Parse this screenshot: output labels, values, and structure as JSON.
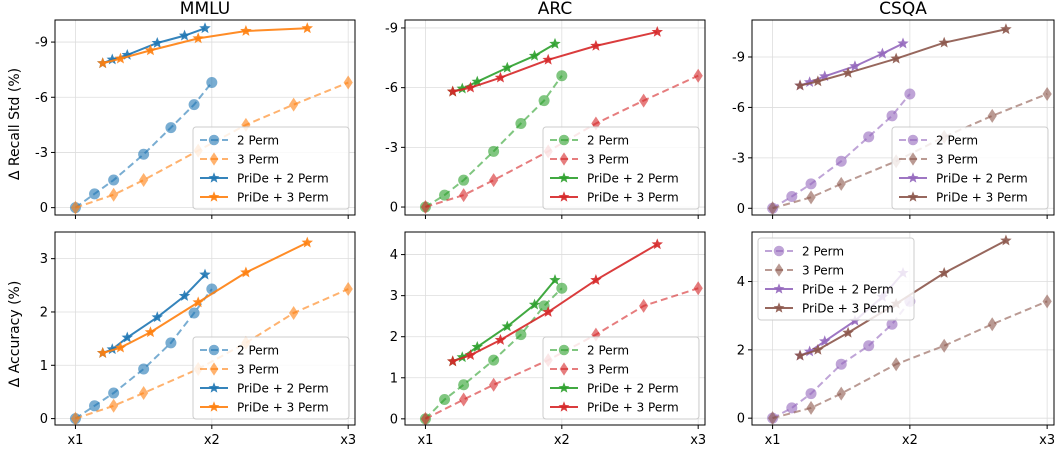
{
  "figure": {
    "ylabel_top": "Δ Recall Std (%)",
    "ylabel_bottom": "Δ Accuracy (%)"
  },
  "colors": {
    "MMLU": [
      "#1f77b4",
      "#ff7f0e"
    ],
    "ARC": [
      "#2ca02c",
      "#d62728"
    ],
    "CSQA": [
      "#9467bd",
      "#8c564b"
    ]
  },
  "chart_data": [
    {
      "type": "line",
      "title": "MMLU",
      "ylabel": "Δ Recall Std (%)",
      "xticks": [
        "x1",
        "x2",
        "x3"
      ],
      "xlim": [
        0.85,
        3.05
      ],
      "yticks": [
        0,
        -3,
        -6,
        -9
      ],
      "yticklabels": [
        "0",
        "-3",
        "-6",
        "-9"
      ],
      "ylim": [
        0.4,
        -10.2
      ],
      "legend": "lower-right",
      "series": [
        {
          "name": "2 Perm",
          "marker": "circle",
          "dashed": true,
          "x": [
            1,
            1.14,
            1.28,
            1.5,
            1.7,
            1.87,
            2
          ],
          "y": [
            0,
            -0.75,
            -1.5,
            -2.9,
            -4.35,
            -5.6,
            -6.8
          ]
        },
        {
          "name": "3 Perm",
          "marker": "diamond",
          "dashed": true,
          "x": [
            1,
            1.28,
            1.5,
            1.9,
            2.25,
            2.6,
            3
          ],
          "y": [
            0,
            -0.7,
            -1.5,
            -3.1,
            -4.5,
            -5.6,
            -6.8
          ]
        },
        {
          "name": "PriDe + 2 Perm",
          "marker": "star",
          "dashed": false,
          "x": [
            1.2,
            1.27,
            1.38,
            1.6,
            1.8,
            1.95
          ],
          "y": [
            -7.85,
            -8.05,
            -8.3,
            -8.95,
            -9.35,
            -9.75
          ]
        },
        {
          "name": "PriDe + 3 Perm",
          "marker": "star",
          "dashed": false,
          "x": [
            1.2,
            1.33,
            1.55,
            1.9,
            2.25,
            2.7
          ],
          "y": [
            -7.85,
            -8.1,
            -8.55,
            -9.2,
            -9.6,
            -9.75
          ]
        }
      ]
    },
    {
      "type": "line",
      "title": "ARC",
      "ylabel": "",
      "xticks": [
        "x1",
        "x2",
        "x3"
      ],
      "xlim": [
        0.85,
        3.05
      ],
      "yticks": [
        0,
        -3,
        -6,
        -9
      ],
      "yticklabels": [
        "0",
        "-3",
        "-6",
        "-9"
      ],
      "ylim": [
        0.4,
        -9.4
      ],
      "legend": "lower-right",
      "series": [
        {
          "name": "2 Perm",
          "marker": "circle",
          "dashed": true,
          "x": [
            1,
            1.14,
            1.28,
            1.5,
            1.7,
            1.87,
            2
          ],
          "y": [
            0,
            -0.6,
            -1.35,
            -2.8,
            -4.2,
            -5.35,
            -6.6
          ]
        },
        {
          "name": "3 Perm",
          "marker": "diamond",
          "dashed": true,
          "x": [
            1,
            1.28,
            1.5,
            1.9,
            2.25,
            2.6,
            3
          ],
          "y": [
            0,
            -0.6,
            -1.35,
            -2.8,
            -4.2,
            -5.35,
            -6.6
          ]
        },
        {
          "name": "PriDe + 2 Perm",
          "marker": "star",
          "dashed": false,
          "x": [
            1.2,
            1.27,
            1.38,
            1.6,
            1.8,
            1.95
          ],
          "y": [
            -5.8,
            -5.95,
            -6.3,
            -7.0,
            -7.6,
            -8.2
          ]
        },
        {
          "name": "PriDe + 3 Perm",
          "marker": "star",
          "dashed": false,
          "x": [
            1.2,
            1.33,
            1.55,
            1.9,
            2.25,
            2.7
          ],
          "y": [
            -5.8,
            -6.0,
            -6.5,
            -7.4,
            -8.1,
            -8.8
          ]
        }
      ]
    },
    {
      "type": "line",
      "title": "CSQA",
      "ylabel": "",
      "xticks": [
        "x1",
        "x2",
        "x3"
      ],
      "xlim": [
        0.85,
        3.05
      ],
      "yticks": [
        0,
        -3,
        -6,
        -9
      ],
      "yticklabels": [
        "0",
        "-3",
        "-6",
        "-9"
      ],
      "ylim": [
        0.4,
        -11.2
      ],
      "legend": "lower-right",
      "series": [
        {
          "name": "2 Perm",
          "marker": "circle",
          "dashed": true,
          "x": [
            1,
            1.14,
            1.28,
            1.5,
            1.7,
            1.87,
            2
          ],
          "y": [
            0,
            -0.7,
            -1.45,
            -2.8,
            -4.25,
            -5.5,
            -6.8
          ]
        },
        {
          "name": "3 Perm",
          "marker": "diamond",
          "dashed": true,
          "x": [
            1,
            1.28,
            1.5,
            1.9,
            2.25,
            2.6,
            3
          ],
          "y": [
            0,
            -0.65,
            -1.45,
            -2.8,
            -4.25,
            -5.5,
            -6.8
          ]
        },
        {
          "name": "PriDe + 2 Perm",
          "marker": "star",
          "dashed": false,
          "x": [
            1.2,
            1.27,
            1.38,
            1.6,
            1.8,
            1.95
          ],
          "y": [
            -7.3,
            -7.5,
            -7.85,
            -8.45,
            -9.2,
            -9.8
          ]
        },
        {
          "name": "PriDe + 3 Perm",
          "marker": "star",
          "dashed": false,
          "x": [
            1.2,
            1.33,
            1.55,
            1.9,
            2.25,
            2.7
          ],
          "y": [
            -7.3,
            -7.55,
            -8.05,
            -8.9,
            -9.85,
            -10.65
          ]
        }
      ]
    },
    {
      "type": "line",
      "title": "",
      "ylabel": "Δ Accuracy (%)",
      "xticks": [
        "x1",
        "x2",
        "x3"
      ],
      "xlim": [
        0.85,
        3.05
      ],
      "yticks": [
        0,
        1,
        2,
        3
      ],
      "yticklabels": [
        "0",
        "1",
        "2",
        "3"
      ],
      "ylim": [
        -0.12,
        3.5
      ],
      "legend": "lower-right",
      "series": [
        {
          "name": "2 Perm",
          "marker": "circle",
          "dashed": true,
          "x": [
            1,
            1.14,
            1.28,
            1.5,
            1.7,
            1.87,
            2
          ],
          "y": [
            0,
            0.24,
            0.48,
            0.93,
            1.42,
            1.98,
            2.43
          ]
        },
        {
          "name": "3 Perm",
          "marker": "diamond",
          "dashed": true,
          "x": [
            1,
            1.28,
            1.5,
            1.9,
            2.25,
            2.6,
            3
          ],
          "y": [
            0,
            0.24,
            0.48,
            0.93,
            1.42,
            1.98,
            2.43
          ]
        },
        {
          "name": "PriDe + 2 Perm",
          "marker": "star",
          "dashed": false,
          "x": [
            1.2,
            1.27,
            1.38,
            1.6,
            1.8,
            1.95
          ],
          "y": [
            1.23,
            1.3,
            1.52,
            1.9,
            2.3,
            2.7
          ]
        },
        {
          "name": "PriDe + 3 Perm",
          "marker": "star",
          "dashed": false,
          "x": [
            1.2,
            1.33,
            1.55,
            1.9,
            2.25,
            2.7
          ],
          "y": [
            1.23,
            1.33,
            1.62,
            2.18,
            2.74,
            3.3
          ]
        }
      ]
    },
    {
      "type": "line",
      "title": "",
      "ylabel": "",
      "xticks": [
        "x1",
        "x2",
        "x3"
      ],
      "xlim": [
        0.85,
        3.05
      ],
      "yticks": [
        0,
        1,
        2,
        3,
        4
      ],
      "yticklabels": [
        "0",
        "1",
        "2",
        "3",
        "4"
      ],
      "ylim": [
        -0.15,
        4.55
      ],
      "legend": "lower-right",
      "series": [
        {
          "name": "2 Perm",
          "marker": "circle",
          "dashed": true,
          "x": [
            1,
            1.14,
            1.28,
            1.5,
            1.7,
            1.87,
            2
          ],
          "y": [
            0,
            0.47,
            0.83,
            1.43,
            2.05,
            2.75,
            3.18
          ]
        },
        {
          "name": "3 Perm",
          "marker": "diamond",
          "dashed": true,
          "x": [
            1,
            1.28,
            1.5,
            1.9,
            2.25,
            2.6,
            3
          ],
          "y": [
            0,
            0.47,
            0.83,
            1.43,
            2.05,
            2.75,
            3.18
          ]
        },
        {
          "name": "PriDe + 2 Perm",
          "marker": "star",
          "dashed": false,
          "x": [
            1.2,
            1.27,
            1.38,
            1.6,
            1.8,
            1.95
          ],
          "y": [
            1.4,
            1.5,
            1.75,
            2.25,
            2.78,
            3.38
          ]
        },
        {
          "name": "PriDe + 3 Perm",
          "marker": "star",
          "dashed": false,
          "x": [
            1.2,
            1.33,
            1.55,
            1.9,
            2.25,
            2.7
          ],
          "y": [
            1.4,
            1.55,
            1.92,
            2.6,
            3.38,
            4.25
          ]
        }
      ]
    },
    {
      "type": "line",
      "title": "",
      "ylabel": "",
      "xticks": [
        "x1",
        "x2",
        "x3"
      ],
      "xlim": [
        0.85,
        3.05
      ],
      "yticks": [
        0,
        2,
        4
      ],
      "yticklabels": [
        "0",
        "2",
        "4"
      ],
      "ylim": [
        -0.2,
        5.45
      ],
      "legend": "upper-left",
      "series": [
        {
          "name": "2 Perm",
          "marker": "circle",
          "dashed": true,
          "x": [
            1,
            1.14,
            1.28,
            1.5,
            1.7,
            1.87,
            2
          ],
          "y": [
            0,
            0.3,
            0.72,
            1.58,
            2.12,
            2.75,
            3.42
          ]
        },
        {
          "name": "3 Perm",
          "marker": "diamond",
          "dashed": true,
          "x": [
            1,
            1.28,
            1.5,
            1.9,
            2.25,
            2.6,
            3
          ],
          "y": [
            0,
            0.3,
            0.72,
            1.58,
            2.12,
            2.75,
            3.42
          ]
        },
        {
          "name": "PriDe + 2 Perm",
          "marker": "star",
          "dashed": false,
          "x": [
            1.2,
            1.27,
            1.38,
            1.6,
            1.8,
            1.95
          ],
          "y": [
            1.83,
            1.95,
            2.25,
            2.85,
            3.55,
            4.25
          ]
        },
        {
          "name": "PriDe + 3 Perm",
          "marker": "star",
          "dashed": false,
          "x": [
            1.2,
            1.33,
            1.55,
            1.9,
            2.25,
            2.7
          ],
          "y": [
            1.83,
            2.0,
            2.5,
            3.35,
            4.25,
            5.2
          ]
        }
      ]
    }
  ]
}
